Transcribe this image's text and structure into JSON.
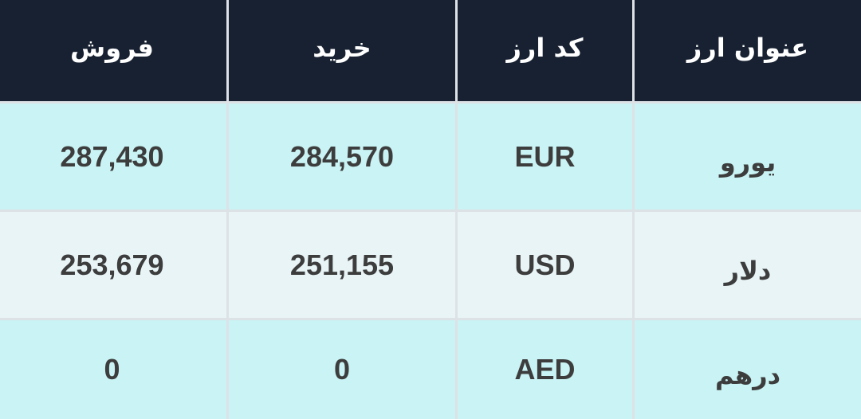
{
  "headers": [
    "عنوان ارز",
    "کد ارز",
    "خرید",
    "فروش"
  ],
  "rows": [
    {
      "name": "یورو",
      "code": "EUR",
      "buy": "284,570",
      "sell": "287,430"
    },
    {
      "name": "دلار",
      "code": "USD",
      "buy": "251,155",
      "sell": "253,679"
    },
    {
      "name": "درهم",
      "code": "AED",
      "buy": "0",
      "sell": "0"
    }
  ],
  "colors": {
    "header_bg": "#172131",
    "row_odd": "#c9f3f4",
    "row_even": "#e8f4f6",
    "text": "#3d3d3d"
  }
}
